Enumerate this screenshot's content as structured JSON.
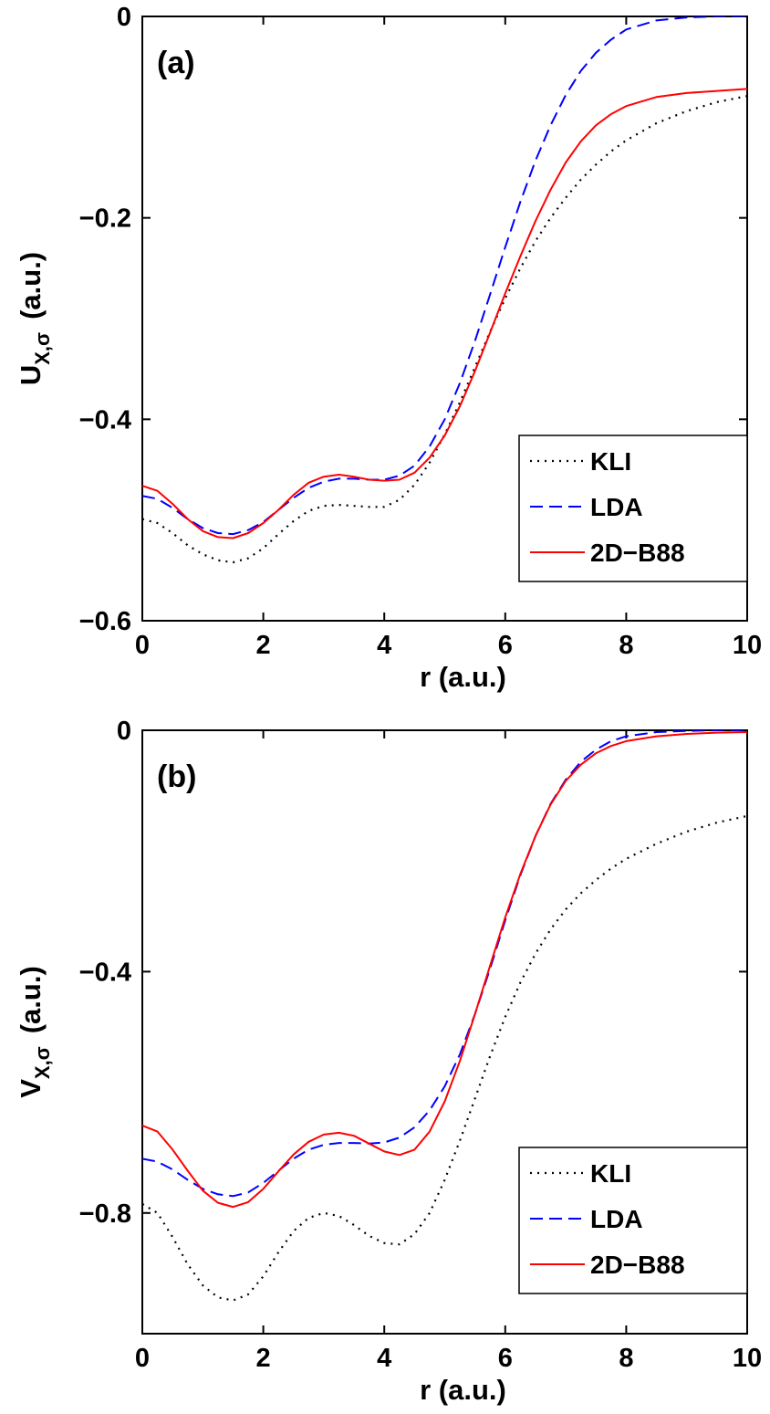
{
  "chart_data": [
    {
      "type": "line",
      "panel_label": "(a)",
      "xlabel": "r (a.u.)",
      "ylabel_main": "U",
      "ylabel_sub": "X,σ",
      "ylabel_suffix": "(a.u.)",
      "xlim": [
        0,
        10
      ],
      "ylim": [
        -0.6,
        0
      ],
      "xticks": [
        0,
        2,
        4,
        6,
        8,
        10
      ],
      "xtick_labels": [
        "0",
        "2",
        "4",
        "6",
        "8",
        "10"
      ],
      "yticks": [
        -0.6,
        -0.4,
        -0.2,
        0
      ],
      "ytick_labels": [
        "−0.6",
        "−0.4",
        "−0.2",
        "0"
      ],
      "grid": false,
      "legend_position": "bottom-right",
      "series": [
        {
          "name": "KLI",
          "color": "#000000",
          "dash": "dotted",
          "x": [
            0,
            0.25,
            0.5,
            0.75,
            1.0,
            1.25,
            1.5,
            1.75,
            2.0,
            2.25,
            2.5,
            2.75,
            3.0,
            3.25,
            3.5,
            3.75,
            4.0,
            4.25,
            4.5,
            4.75,
            5.0,
            5.25,
            5.5,
            5.75,
            6.0,
            6.25,
            6.5,
            6.75,
            7.0,
            7.25,
            7.5,
            7.75,
            8.0,
            8.5,
            9.0,
            9.5,
            10.0
          ],
          "y": [
            -0.499,
            -0.503,
            -0.513,
            -0.525,
            -0.534,
            -0.54,
            -0.542,
            -0.538,
            -0.528,
            -0.514,
            -0.501,
            -0.491,
            -0.486,
            -0.485,
            -0.486,
            -0.487,
            -0.487,
            -0.48,
            -0.465,
            -0.443,
            -0.415,
            -0.383,
            -0.348,
            -0.313,
            -0.28,
            -0.25,
            -0.223,
            -0.2,
            -0.18,
            -0.162,
            -0.147,
            -0.134,
            -0.123,
            -0.106,
            -0.094,
            -0.085,
            -0.079
          ]
        },
        {
          "name": "LDA",
          "color": "#0000ff",
          "dash": "dashed",
          "x": [
            0,
            0.25,
            0.5,
            0.75,
            1.0,
            1.25,
            1.5,
            1.75,
            2.0,
            2.25,
            2.5,
            2.75,
            3.0,
            3.25,
            3.5,
            3.75,
            4.0,
            4.25,
            4.5,
            4.75,
            5.0,
            5.25,
            5.5,
            5.75,
            6.0,
            6.25,
            6.5,
            6.75,
            7.0,
            7.25,
            7.5,
            7.75,
            8.0,
            8.5,
            9.0,
            9.5,
            10.0
          ],
          "y": [
            -0.476,
            -0.479,
            -0.488,
            -0.499,
            -0.508,
            -0.513,
            -0.514,
            -0.51,
            -0.502,
            -0.49,
            -0.478,
            -0.468,
            -0.462,
            -0.459,
            -0.459,
            -0.46,
            -0.46,
            -0.456,
            -0.446,
            -0.427,
            -0.4,
            -0.364,
            -0.322,
            -0.276,
            -0.229,
            -0.184,
            -0.143,
            -0.108,
            -0.078,
            -0.054,
            -0.036,
            -0.023,
            -0.013,
            -0.004,
            -0.001,
            0.0,
            0.0
          ]
        },
        {
          "name": "2D−B88",
          "color": "#ff0000",
          "dash": "solid",
          "x": [
            0,
            0.25,
            0.5,
            0.75,
            1.0,
            1.25,
            1.5,
            1.75,
            2.0,
            2.25,
            2.5,
            2.75,
            3.0,
            3.25,
            3.5,
            3.75,
            4.0,
            4.25,
            4.5,
            4.75,
            5.0,
            5.25,
            5.5,
            5.75,
            6.0,
            6.25,
            6.5,
            6.75,
            7.0,
            7.25,
            7.5,
            7.75,
            8.0,
            8.5,
            9.0,
            9.5,
            10.0
          ],
          "y": [
            -0.466,
            -0.471,
            -0.484,
            -0.499,
            -0.511,
            -0.517,
            -0.518,
            -0.513,
            -0.503,
            -0.49,
            -0.475,
            -0.463,
            -0.457,
            -0.455,
            -0.457,
            -0.46,
            -0.461,
            -0.46,
            -0.453,
            -0.438,
            -0.416,
            -0.387,
            -0.352,
            -0.314,
            -0.275,
            -0.238,
            -0.203,
            -0.172,
            -0.145,
            -0.124,
            -0.108,
            -0.097,
            -0.089,
            -0.08,
            -0.076,
            -0.074,
            -0.072
          ]
        }
      ]
    },
    {
      "type": "line",
      "panel_label": "(b)",
      "xlabel": "r (a.u.)",
      "ylabel_main": "V",
      "ylabel_sub": "X,σ",
      "ylabel_suffix": "(a.u.)",
      "xlim": [
        0,
        10
      ],
      "ylim": [
        -1.0,
        0
      ],
      "xticks": [
        0,
        2,
        4,
        6,
        8,
        10
      ],
      "xtick_labels": [
        "0",
        "2",
        "4",
        "6",
        "8",
        "10"
      ],
      "yticks": [
        -0.8,
        -0.4,
        0
      ],
      "ytick_labels": [
        "−0.8",
        "−0.4",
        "0"
      ],
      "grid": false,
      "legend_position": "bottom-right",
      "series": [
        {
          "name": "KLI",
          "color": "#000000",
          "dash": "dotted",
          "x": [
            0,
            0.25,
            0.5,
            0.75,
            1.0,
            1.25,
            1.5,
            1.75,
            2.0,
            2.25,
            2.5,
            2.75,
            3.0,
            3.25,
            3.5,
            3.75,
            4.0,
            4.25,
            4.5,
            4.75,
            5.0,
            5.25,
            5.5,
            5.75,
            6.0,
            6.25,
            6.5,
            6.75,
            7.0,
            7.25,
            7.5,
            7.75,
            8.0,
            8.5,
            9.0,
            9.5,
            10.0
          ],
          "y": [
            -0.785,
            -0.8,
            -0.84,
            -0.885,
            -0.92,
            -0.94,
            -0.945,
            -0.935,
            -0.905,
            -0.865,
            -0.83,
            -0.808,
            -0.8,
            -0.805,
            -0.82,
            -0.838,
            -0.85,
            -0.852,
            -0.835,
            -0.8,
            -0.745,
            -0.68,
            -0.61,
            -0.54,
            -0.475,
            -0.418,
            -0.37,
            -0.33,
            -0.297,
            -0.27,
            -0.248,
            -0.229,
            -0.213,
            -0.188,
            -0.168,
            -0.153,
            -0.142
          ]
        },
        {
          "name": "LDA",
          "color": "#0000ff",
          "dash": "dashed",
          "x": [
            0,
            0.25,
            0.5,
            0.75,
            1.0,
            1.25,
            1.5,
            1.75,
            2.0,
            2.25,
            2.5,
            2.75,
            3.0,
            3.25,
            3.5,
            3.75,
            4.0,
            4.25,
            4.5,
            4.75,
            5.0,
            5.25,
            5.5,
            5.75,
            6.0,
            6.25,
            6.5,
            6.75,
            7.0,
            7.25,
            7.5,
            7.75,
            8.0,
            8.5,
            9.0,
            9.5,
            10.0
          ],
          "y": [
            -0.71,
            -0.715,
            -0.728,
            -0.745,
            -0.76,
            -0.769,
            -0.772,
            -0.766,
            -0.75,
            -0.73,
            -0.71,
            -0.695,
            -0.687,
            -0.684,
            -0.684,
            -0.685,
            -0.683,
            -0.675,
            -0.658,
            -0.63,
            -0.59,
            -0.537,
            -0.47,
            -0.395,
            -0.315,
            -0.24,
            -0.175,
            -0.122,
            -0.082,
            -0.052,
            -0.032,
            -0.018,
            -0.01,
            -0.003,
            -0.001,
            0.0,
            0.0
          ]
        },
        {
          "name": "2D−B88",
          "color": "#ff0000",
          "dash": "solid",
          "x": [
            0,
            0.25,
            0.5,
            0.75,
            1.0,
            1.25,
            1.5,
            1.75,
            2.0,
            2.25,
            2.5,
            2.75,
            3.0,
            3.25,
            3.5,
            3.75,
            4.0,
            4.25,
            4.5,
            4.75,
            5.0,
            5.25,
            5.5,
            5.75,
            6.0,
            6.25,
            6.5,
            6.75,
            7.0,
            7.25,
            7.5,
            7.75,
            8.0,
            8.5,
            9.0,
            9.5,
            10.0
          ],
          "y": [
            -0.655,
            -0.665,
            -0.695,
            -0.73,
            -0.763,
            -0.783,
            -0.79,
            -0.782,
            -0.76,
            -0.731,
            -0.703,
            -0.682,
            -0.67,
            -0.667,
            -0.672,
            -0.685,
            -0.698,
            -0.704,
            -0.695,
            -0.665,
            -0.615,
            -0.548,
            -0.47,
            -0.39,
            -0.31,
            -0.238,
            -0.175,
            -0.123,
            -0.084,
            -0.057,
            -0.038,
            -0.026,
            -0.018,
            -0.01,
            -0.006,
            -0.004,
            -0.003
          ]
        }
      ]
    }
  ]
}
